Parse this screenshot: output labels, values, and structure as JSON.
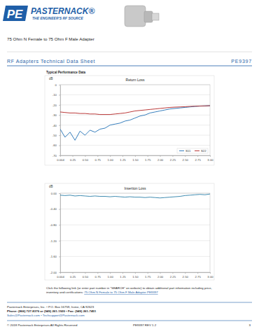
{
  "header": {
    "logo": "PE",
    "brand": "PASTERNACK®",
    "tagline": "THE ENGINEER'S RF SOURCE"
  },
  "title": "75 Ohm N Female to 75 Ohm F Male Adapter",
  "section": {
    "title": "RF Adapters Technical Data Sheet",
    "part_number": "PE9397"
  },
  "subtitle": "Typical Performance Data",
  "chart_data": [
    {
      "type": "line",
      "title": "Return Loss",
      "y_label": "dB",
      "grid": true,
      "legend": "lower-right",
      "x": [
        0.004,
        0.1,
        0.2,
        0.3,
        0.4,
        0.5,
        0.6,
        0.7,
        0.8,
        0.9,
        1.0,
        1.1,
        1.2,
        1.3,
        1.4,
        1.5,
        1.6,
        1.7,
        1.8,
        1.9,
        2.0,
        2.1,
        2.2,
        2.3,
        2.4,
        2.5,
        2.6,
        2.7,
        2.8,
        2.9,
        3.0
      ],
      "series": [
        {
          "name": "S11",
          "color": "#1f6fb4",
          "values": [
            -44,
            -52,
            -47,
            -55,
            -46,
            -50,
            -45,
            -47,
            -44,
            -43,
            -40,
            -39,
            -38,
            -36,
            -35,
            -33,
            -31,
            -30,
            -28,
            -27,
            -26,
            -25,
            -24,
            -23.5,
            -23,
            -22.5,
            -22,
            -21.5,
            -21.2,
            -21,
            -20.8
          ]
        },
        {
          "name": "S22",
          "color": "#b22222",
          "values": [
            -27,
            -27.5,
            -28,
            -28,
            -28.5,
            -28.5,
            -29,
            -29,
            -29.5,
            -29.5,
            -29.5,
            -29,
            -28.5,
            -28,
            -27,
            -26,
            -25.5,
            -25,
            -24.5,
            -24,
            -23.5,
            -23,
            -22.5,
            -22.2,
            -22,
            -21.8,
            -21.5,
            -21.3,
            -21.1,
            -21,
            -20.8
          ]
        }
      ],
      "xlim": [
        0.004,
        3.0
      ],
      "xticks": [
        0.004,
        {
          "value": 0.25,
          "label": "0.25"
        },
        {
          "value": 0.5,
          "label": "0.50"
        },
        {
          "value": 0.75,
          "label": "0.75"
        },
        {
          "value": 1.0,
          "label": "1.00"
        },
        {
          "value": 1.25,
          "label": "1.25"
        },
        {
          "value": 1.5,
          "label": "1.50"
        },
        {
          "value": 1.75,
          "label": "1.75"
        },
        {
          "value": 2.0,
          "label": "2.00"
        },
        {
          "value": 2.25,
          "label": "2.25"
        },
        {
          "value": 2.5,
          "label": "2.50"
        },
        {
          "value": 2.75,
          "label": "2.75"
        },
        {
          "value": 3.0,
          "label": "3.00"
        }
      ],
      "ylim": [
        -70,
        0
      ],
      "yticks": [
        0,
        -10,
        -20,
        -30,
        -40,
        -50,
        -60,
        -70
      ]
    },
    {
      "type": "line",
      "title": "Insertion Loss",
      "y_label": "dB",
      "grid": true,
      "color": "#2a7fa8",
      "x": [
        0.004,
        0.1,
        0.2,
        0.3,
        0.4,
        0.5,
        0.6,
        0.7,
        0.8,
        0.9,
        1.0,
        1.1,
        1.2,
        1.3,
        1.4,
        1.5,
        1.6,
        1.7,
        1.8,
        1.9,
        2.0,
        2.1,
        2.2,
        2.3,
        2.4,
        2.5,
        2.6,
        2.7,
        2.8,
        2.9,
        3.0
      ],
      "values": [
        -0.05,
        -0.06,
        -0.05,
        -0.07,
        -0.06,
        -0.07,
        -0.08,
        -0.07,
        -0.08,
        -0.08,
        -0.09,
        -0.08,
        -0.09,
        -0.1,
        -0.09,
        -0.1,
        -0.1,
        -0.11,
        -0.1,
        -0.11,
        -0.12,
        -0.11,
        -0.1,
        -0.09,
        -0.08,
        -0.06,
        -0.05,
        -0.04,
        -0.03,
        -0.04,
        -0.02
      ],
      "xlim": [
        0.004,
        3.0
      ],
      "xticks": [
        0.004,
        {
          "value": 0.25,
          "label": "0.25"
        },
        {
          "value": 0.5,
          "label": "0.50"
        },
        {
          "value": 0.75,
          "label": "0.75"
        },
        {
          "value": 1.0,
          "label": "1.00"
        },
        {
          "value": 1.25,
          "label": "1.25"
        },
        {
          "value": 1.5,
          "label": "1.50"
        },
        {
          "value": 1.75,
          "label": "1.75"
        },
        {
          "value": 2.0,
          "label": "2.00"
        },
        {
          "value": 2.25,
          "label": "2.25"
        },
        {
          "value": 2.5,
          "label": "2.50"
        },
        {
          "value": 2.75,
          "label": "2.75"
        },
        {
          "value": 3.0,
          "label": "3.00"
        }
      ],
      "ylim": [
        -2,
        0
      ],
      "yticks": [
        {
          "value": 0,
          "label": "0.00"
        },
        {
          "value": -0.4,
          "label": "-0.40"
        },
        {
          "value": -0.8,
          "label": "-0.80"
        },
        {
          "value": -1.2,
          "label": "-1.20"
        },
        {
          "value": -1.6,
          "label": "-1.60"
        },
        {
          "value": -2,
          "label": "-2.00"
        }
      ]
    }
  ],
  "note": {
    "lines": [
      "Click the following link (or enter part number in “SEARCH” on website) to obtain additional part information including price,",
      "inventory and certifications: "
    ],
    "link": "75 Ohm N Female to 75 Ohm F Male Adapter PE9397"
  },
  "footer": {
    "address": "Pasternack Enterprises, Inc. • P.O. Box 16759, Irvine, CA 92623",
    "phone": "Phone: (866) 727-8376 or (949) 261-1920 • Fax: (949) 261-7451",
    "email": "Sales@Pasternack.com • Techsupport@Pasternack.com",
    "copyright": "© 2018 Pasternack Enterprises All Rights Reserved",
    "revision": "PE9397 REV 1.2",
    "page": "3"
  }
}
